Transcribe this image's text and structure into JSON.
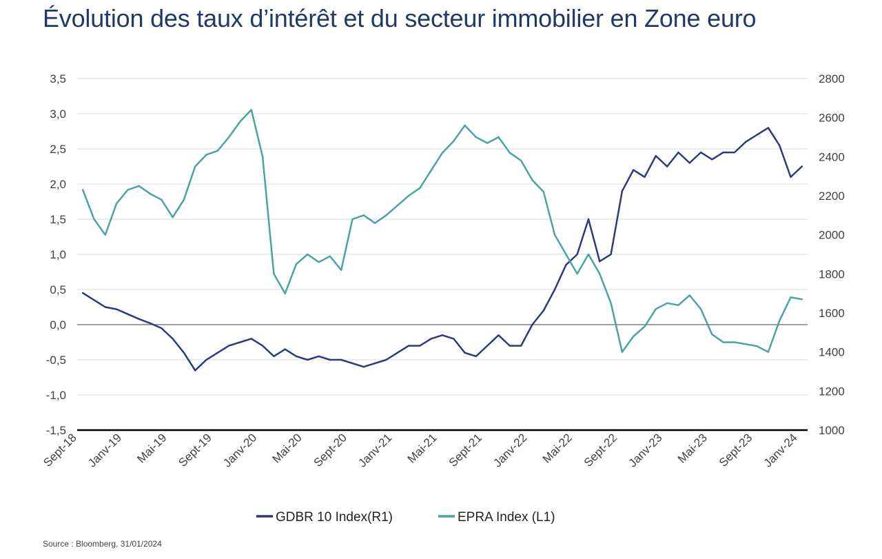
{
  "title": "Évolution des taux d’intérêt et du secteur immobilier en Zone euro",
  "source": "Source : Bloomberg, 31/01/2024",
  "colors": {
    "gdbr": "#2b3a80",
    "epra": "#4aa3a3",
    "grid": "#d9d9d9",
    "zero": "#7f7f7f",
    "axis": "#000000"
  },
  "chart_data": {
    "type": "line",
    "title": "Évolution des taux d’intérêt et du secteur immobilier en Zone euro",
    "grid": true,
    "legend_position": "bottom",
    "x_ticks": [
      "Sept-18",
      "Janv-19",
      "Mai-19",
      "Sept-19",
      "Janv-20",
      "Mai-20",
      "Sept-20",
      "Janv-21",
      "Mai-21",
      "Sept-21",
      "Janv-22",
      "Mai-22",
      "Sept-22",
      "Janv-23",
      "Mai-23",
      "Sept-23",
      "Janv-24"
    ],
    "y_left": {
      "ticks": [
        "3,5",
        "3,0",
        "2,5",
        "2,0",
        "1,5",
        "1,0",
        "0,5",
        "0,0",
        "-0,5",
        "-1,0",
        "-1,5"
      ],
      "range": [
        -1.5,
        3.5
      ]
    },
    "y_right": {
      "ticks": [
        "2800",
        "2600",
        "2400",
        "2200",
        "2000",
        "1800",
        "1600",
        "1400",
        "1200",
        "1000"
      ],
      "range": [
        1000,
        2800
      ]
    },
    "series": [
      {
        "name": "GDBR 10 Index(R1)",
        "axis": "left",
        "x": [
          "2018-09",
          "2018-10",
          "2018-11",
          "2018-12",
          "2019-01",
          "2019-02",
          "2019-03",
          "2019-04",
          "2019-05",
          "2019-06",
          "2019-07",
          "2019-08",
          "2019-09",
          "2019-10",
          "2019-11",
          "2019-12",
          "2020-01",
          "2020-02",
          "2020-03",
          "2020-04",
          "2020-05",
          "2020-06",
          "2020-07",
          "2020-08",
          "2020-09",
          "2020-10",
          "2020-11",
          "2020-12",
          "2021-01",
          "2021-02",
          "2021-03",
          "2021-04",
          "2021-05",
          "2021-06",
          "2021-07",
          "2021-08",
          "2021-09",
          "2021-10",
          "2021-11",
          "2021-12",
          "2022-01",
          "2022-02",
          "2022-03",
          "2022-04",
          "2022-05",
          "2022-06",
          "2022-07",
          "2022-08",
          "2022-09",
          "2022-10",
          "2022-11",
          "2022-12",
          "2023-01",
          "2023-02",
          "2023-03",
          "2023-04",
          "2023-05",
          "2023-06",
          "2023-07",
          "2023-08",
          "2023-09",
          "2023-10",
          "2023-11",
          "2023-12",
          "2024-01"
        ],
        "values": [
          0.45,
          0.35,
          0.25,
          0.22,
          0.15,
          0.08,
          0.02,
          -0.05,
          -0.2,
          -0.4,
          -0.65,
          -0.5,
          -0.4,
          -0.3,
          -0.25,
          -0.2,
          -0.3,
          -0.45,
          -0.35,
          -0.45,
          -0.5,
          -0.45,
          -0.5,
          -0.5,
          -0.55,
          -0.6,
          -0.55,
          -0.5,
          -0.4,
          -0.3,
          -0.3,
          -0.2,
          -0.15,
          -0.2,
          -0.4,
          -0.45,
          -0.3,
          -0.15,
          -0.3,
          -0.3,
          0.0,
          0.2,
          0.5,
          0.85,
          1.0,
          1.5,
          0.9,
          1.0,
          1.9,
          2.2,
          2.1,
          2.4,
          2.25,
          2.45,
          2.3,
          2.45,
          2.35,
          2.45,
          2.45,
          2.6,
          2.7,
          2.8,
          2.55,
          2.1,
          2.25
        ]
      },
      {
        "name": "EPRA Index (L1)",
        "axis": "right",
        "x": [
          "2018-09",
          "2018-10",
          "2018-11",
          "2018-12",
          "2019-01",
          "2019-02",
          "2019-03",
          "2019-04",
          "2019-05",
          "2019-06",
          "2019-07",
          "2019-08",
          "2019-09",
          "2019-10",
          "2019-11",
          "2019-12",
          "2020-01",
          "2020-02",
          "2020-03",
          "2020-04",
          "2020-05",
          "2020-06",
          "2020-07",
          "2020-08",
          "2020-09",
          "2020-10",
          "2020-11",
          "2020-12",
          "2021-01",
          "2021-02",
          "2021-03",
          "2021-04",
          "2021-05",
          "2021-06",
          "2021-07",
          "2021-08",
          "2021-09",
          "2021-10",
          "2021-11",
          "2021-12",
          "2022-01",
          "2022-02",
          "2022-03",
          "2022-04",
          "2022-05",
          "2022-06",
          "2022-07",
          "2022-08",
          "2022-09",
          "2022-10",
          "2022-11",
          "2022-12",
          "2023-01",
          "2023-02",
          "2023-03",
          "2023-04",
          "2023-05",
          "2023-06",
          "2023-07",
          "2023-08",
          "2023-09",
          "2023-10",
          "2023-11",
          "2023-12",
          "2024-01"
        ],
        "values": [
          2230,
          2080,
          2000,
          2160,
          2230,
          2250,
          2210,
          2180,
          2090,
          2180,
          2350,
          2410,
          2430,
          2500,
          2580,
          2640,
          2400,
          1800,
          1700,
          1850,
          1900,
          1860,
          1890,
          1820,
          2080,
          2100,
          2060,
          2100,
          2150,
          2200,
          2240,
          2330,
          2420,
          2480,
          2560,
          2500,
          2470,
          2500,
          2420,
          2380,
          2280,
          2220,
          2000,
          1900,
          1800,
          1900,
          1800,
          1650,
          1400,
          1480,
          1530,
          1620,
          1650,
          1640,
          1690,
          1620,
          1490,
          1450,
          1450,
          1440,
          1430,
          1400,
          1560,
          1680,
          1670
        ]
      }
    ]
  },
  "legend": {
    "items": [
      {
        "label": "GDBR 10 Index(R1)",
        "color": "#2b3a80"
      },
      {
        "label": "EPRA Index (L1)",
        "color": "#4aa3a3"
      }
    ]
  }
}
